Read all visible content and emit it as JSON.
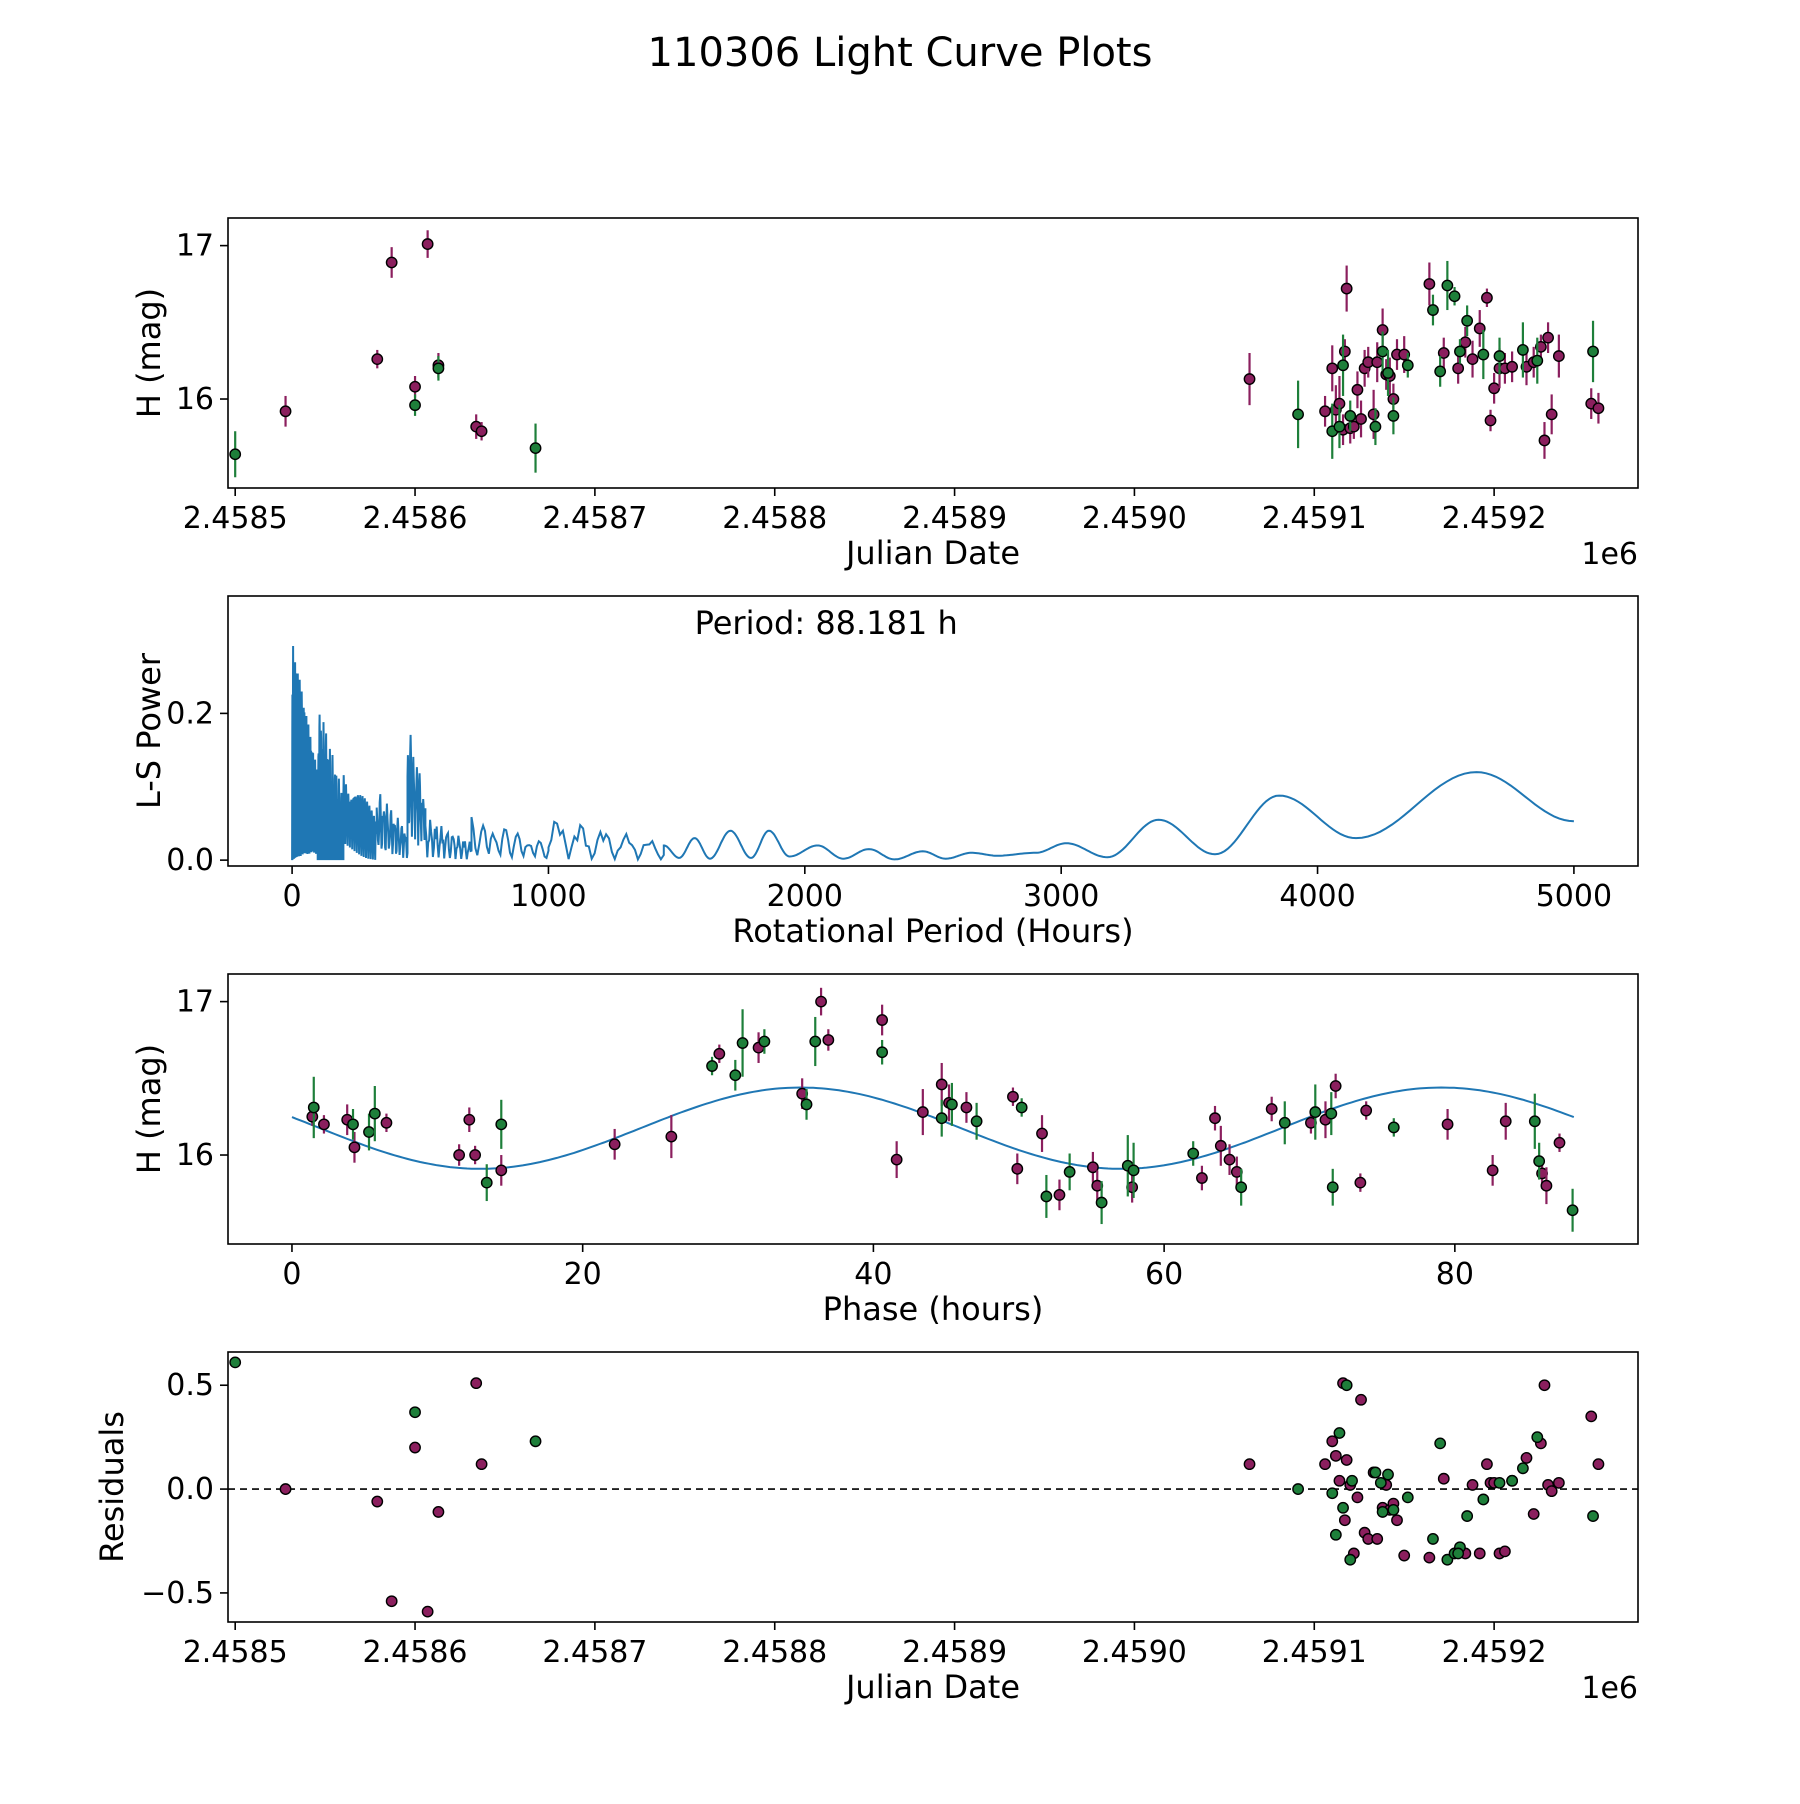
{
  "figure": {
    "title": "110306 Light Curve Plots"
  },
  "colors": {
    "series_a": "#8b1f5e",
    "series_b": "#1e7f3a",
    "curve": "#1f77b4",
    "frame": "#000000"
  },
  "chart_data": [
    {
      "type": "scatter",
      "title": "",
      "xlabel": "Julian Date",
      "ylabel": "H (mag)",
      "x_offset_label": "1e6",
      "xlim": [
        2458496,
        2459280
      ],
      "ylim": [
        15.42,
        17.18
      ],
      "xticks": [
        2458500,
        2458600,
        2458700,
        2458800,
        2458900,
        2459000,
        2459100,
        2459200
      ],
      "xtick_labels": [
        "2.4585",
        "2.4586",
        "2.4587",
        "2.4588",
        "2.4589",
        "2.4590",
        "2.4591",
        "2.4592"
      ],
      "yticks": [
        16,
        17
      ],
      "ytick_labels": [
        "16",
        "17"
      ],
      "series": [
        {
          "name": "series-a",
          "color": "#8b1f5e",
          "x": [
            2458528,
            2458579,
            2458587,
            2458600,
            2458607,
            2458613,
            2458634,
            2458637,
            2459064,
            2459106,
            2459110,
            2459112,
            2459114,
            2459116,
            2459117,
            2459118,
            2459120,
            2459122,
            2459124,
            2459126,
            2459128,
            2459130,
            2459133,
            2459135,
            2459138,
            2459140,
            2459142,
            2459144,
            2459146,
            2459150,
            2459164,
            2459172,
            2459180,
            2459184,
            2459188,
            2459192,
            2459196,
            2459198,
            2459200,
            2459203,
            2459206,
            2459210,
            2459218,
            2459222,
            2459226,
            2459228,
            2459230,
            2459232,
            2459236,
            2459254,
            2459258
          ],
          "y": [
            15.92,
            16.26,
            16.89,
            16.08,
            17.01,
            16.22,
            15.82,
            15.79,
            16.13,
            15.92,
            16.2,
            15.93,
            15.97,
            15.8,
            16.31,
            16.72,
            15.81,
            15.82,
            16.06,
            15.87,
            16.2,
            16.24,
            15.9,
            16.24,
            16.45,
            16.16,
            16.15,
            16.0,
            16.29,
            16.29,
            16.75,
            16.3,
            16.2,
            16.37,
            16.26,
            16.46,
            16.66,
            15.86,
            16.07,
            16.2,
            16.2,
            16.21,
            16.21,
            16.24,
            16.34,
            15.73,
            16.4,
            15.9,
            16.28,
            15.97,
            15.94
          ],
          "yerr": [
            0.1,
            0.06,
            0.1,
            0.07,
            0.09,
            0.08,
            0.08,
            0.06,
            0.17,
            0.1,
            0.15,
            0.16,
            0.18,
            0.1,
            0.08,
            0.15,
            0.1,
            0.08,
            0.12,
            0.12,
            0.12,
            0.1,
            0.16,
            0.13,
            0.14,
            0.1,
            0.12,
            0.1,
            0.1,
            0.12,
            0.14,
            0.1,
            0.1,
            0.1,
            0.12,
            0.12,
            0.06,
            0.07,
            0.1,
            0.13,
            0.1,
            0.1,
            0.12,
            0.1,
            0.08,
            0.12,
            0.1,
            0.13,
            0.14,
            0.1,
            0.1
          ]
        },
        {
          "name": "series-b",
          "color": "#1e7f3a",
          "x": [
            2458500,
            2458600,
            2458613,
            2458667,
            2459091,
            2459110,
            2459114,
            2459116,
            2459120,
            2459134,
            2459138,
            2459141,
            2459144,
            2459152,
            2459166,
            2459170,
            2459174,
            2459178,
            2459181,
            2459185,
            2459194,
            2459203,
            2459216,
            2459224,
            2459255
          ],
          "y": [
            15.64,
            15.96,
            16.2,
            15.68,
            15.9,
            15.79,
            15.82,
            16.22,
            15.89,
            15.82,
            16.31,
            16.17,
            15.89,
            16.22,
            16.58,
            16.18,
            16.74,
            16.67,
            16.31,
            16.51,
            16.29,
            16.28,
            16.32,
            16.25,
            16.31
          ],
          "yerr": [
            0.15,
            0.07,
            0.08,
            0.16,
            0.22,
            0.18,
            0.14,
            0.2,
            0.1,
            0.12,
            0.13,
            0.15,
            0.12,
            0.08,
            0.1,
            0.1,
            0.16,
            0.06,
            0.08,
            0.1,
            0.16,
            0.12,
            0.18,
            0.15,
            0.2
          ]
        }
      ]
    },
    {
      "type": "line",
      "title": "",
      "xlabel": "Rotational Period (Hours)",
      "ylabel": "L-S Power",
      "annotation": "Period: 88.181 h",
      "xlim": [
        -250,
        5250
      ],
      "ylim": [
        -0.008,
        0.36
      ],
      "xticks": [
        0,
        1000,
        2000,
        3000,
        4000,
        5000
      ],
      "xtick_labels": [
        "0",
        "1000",
        "2000",
        "3000",
        "4000",
        "5000"
      ],
      "yticks": [
        0.0,
        0.2
      ],
      "ytick_labels": [
        "0.0",
        "0.2"
      ],
      "segments": [
        {
          "x_start": 0,
          "x_end": 100,
          "base": 0.0,
          "amp": 0.3,
          "period": 2.6
        },
        {
          "x_start": 100,
          "x_end": 200,
          "base": 0.0,
          "amp": 0.22,
          "period": 5
        },
        {
          "x_start": 200,
          "x_end": 330,
          "base": 0.0,
          "amp": 0.14,
          "period": 9
        },
        {
          "x_start": 330,
          "x_end": 450,
          "base": 0.0,
          "amp": 0.1,
          "period": 14
        },
        {
          "x_start": 450,
          "x_end": 520,
          "base": 0.02,
          "amp": 0.17,
          "period": 12
        },
        {
          "x_start": 520,
          "x_end": 700,
          "base": 0.0,
          "amp": 0.06,
          "period": 22
        },
        {
          "x_start": 700,
          "x_end": 1000,
          "base": 0.0,
          "amp": 0.06,
          "period": 45
        },
        {
          "x_start": 1000,
          "x_end": 1450,
          "base": 0.0,
          "amp": 0.06,
          "period": 90
        }
      ],
      "smooth_points": [
        [
          1450,
          0.02
        ],
        [
          1510,
          0.003
        ],
        [
          1570,
          0.03
        ],
        [
          1630,
          0.002
        ],
        [
          1710,
          0.04
        ],
        [
          1790,
          0.003
        ],
        [
          1860,
          0.04
        ],
        [
          1940,
          0.005
        ],
        [
          2050,
          0.02
        ],
        [
          2150,
          0.002
        ],
        [
          2250,
          0.015
        ],
        [
          2350,
          0.001
        ],
        [
          2460,
          0.012
        ],
        [
          2550,
          0.002
        ],
        [
          2650,
          0.01
        ],
        [
          2750,
          0.006
        ],
        [
          2900,
          0.01
        ],
        [
          3020,
          0.023
        ],
        [
          3180,
          0.004
        ],
        [
          3380,
          0.055
        ],
        [
          3600,
          0.008
        ],
        [
          3850,
          0.088
        ],
        [
          4150,
          0.03
        ],
        [
          4620,
          0.12
        ],
        [
          5000,
          0.053
        ]
      ]
    },
    {
      "type": "scatter",
      "title": "",
      "xlabel": "Phase (hours)",
      "ylabel": "H (mag)",
      "xlim": [
        -4.4,
        92.6
      ],
      "ylim": [
        15.42,
        17.18
      ],
      "xticks": [
        0,
        20,
        40,
        60,
        80
      ],
      "xtick_labels": [
        "0",
        "20",
        "40",
        "60",
        "80"
      ],
      "yticks": [
        16,
        17
      ],
      "ytick_labels": [
        "16",
        "17"
      ],
      "fit": {
        "mean": 16.175,
        "amplitude": 0.265,
        "period": 44.09,
        "phase_max": 35.0,
        "x_range": [
          0,
          88.18
        ]
      },
      "series": [
        {
          "name": "series-a",
          "color": "#8b1f5e",
          "x": [
            1.4,
            2.2,
            3.8,
            4.3,
            6.5,
            11.5,
            12.2,
            12.6,
            14.4,
            22.2,
            26.1,
            29.4,
            32.1,
            35.1,
            36.4,
            36.9,
            40.6,
            41.6,
            43.4,
            44.7,
            45.2,
            46.4,
            49.6,
            49.9,
            51.6,
            52.8,
            55.1,
            55.4,
            57.8,
            62.6,
            63.5,
            63.9,
            64.5,
            65.0,
            67.4,
            70.1,
            71.1,
            71.8,
            73.5,
            73.9,
            79.5,
            82.6,
            83.5,
            86.0,
            86.3,
            87.2
          ],
          "y": [
            16.25,
            16.2,
            16.23,
            16.05,
            16.21,
            16.0,
            16.23,
            16.0,
            15.9,
            16.07,
            16.12,
            16.66,
            16.7,
            16.4,
            17.0,
            16.75,
            16.88,
            15.97,
            16.28,
            16.46,
            16.34,
            16.31,
            16.38,
            15.91,
            16.14,
            15.74,
            15.92,
            15.8,
            15.79,
            15.85,
            16.24,
            16.06,
            15.97,
            15.89,
            16.3,
            16.21,
            16.23,
            16.45,
            15.82,
            16.29,
            16.2,
            15.9,
            16.22,
            15.88,
            15.8,
            16.08
          ],
          "yerr": [
            0.06,
            0.06,
            0.1,
            0.1,
            0.06,
            0.07,
            0.08,
            0.06,
            0.1,
            0.1,
            0.14,
            0.06,
            0.1,
            0.1,
            0.09,
            0.07,
            0.1,
            0.12,
            0.15,
            0.14,
            0.12,
            0.1,
            0.06,
            0.1,
            0.12,
            0.1,
            0.1,
            0.1,
            0.1,
            0.08,
            0.08,
            0.13,
            0.1,
            0.1,
            0.08,
            0.07,
            0.12,
            0.08,
            0.06,
            0.06,
            0.1,
            0.1,
            0.12,
            0.1,
            0.12,
            0.06
          ]
        },
        {
          "name": "series-b",
          "color": "#1e7f3a",
          "x": [
            1.5,
            4.2,
            5.3,
            5.7,
            13.4,
            14.4,
            28.9,
            30.5,
            31.0,
            32.5,
            35.4,
            36.0,
            40.6,
            44.7,
            45.4,
            47.1,
            50.2,
            51.9,
            53.5,
            55.7,
            57.5,
            57.9,
            62.0,
            65.3,
            68.3,
            70.4,
            71.5,
            71.6,
            75.8,
            85.5,
            85.8,
            88.1
          ],
          "y": [
            16.31,
            16.2,
            16.15,
            16.27,
            15.82,
            16.2,
            16.58,
            16.52,
            16.73,
            16.74,
            16.33,
            16.74,
            16.67,
            16.24,
            16.33,
            16.22,
            16.31,
            15.73,
            15.89,
            15.69,
            15.93,
            15.9,
            16.01,
            15.79,
            16.21,
            16.28,
            16.27,
            15.79,
            16.18,
            16.22,
            15.96,
            15.64
          ],
          "yerr": [
            0.2,
            0.1,
            0.12,
            0.18,
            0.12,
            0.16,
            0.06,
            0.1,
            0.22,
            0.08,
            0.1,
            0.16,
            0.08,
            0.12,
            0.14,
            0.12,
            0.06,
            0.14,
            0.12,
            0.14,
            0.2,
            0.18,
            0.08,
            0.12,
            0.14,
            0.18,
            0.14,
            0.12,
            0.06,
            0.18,
            0.12,
            0.14
          ]
        }
      ]
    },
    {
      "type": "scatter",
      "title": "",
      "xlabel": "Julian Date",
      "ylabel": "Residuals",
      "x_offset_label": "1e6",
      "xlim": [
        2458496,
        2459280
      ],
      "ylim": [
        -0.64,
        0.66
      ],
      "xticks": [
        2458500,
        2458600,
        2458700,
        2458800,
        2458900,
        2459000,
        2459100,
        2459200
      ],
      "xtick_labels": [
        "2.4585",
        "2.4586",
        "2.4587",
        "2.4588",
        "2.4589",
        "2.4590",
        "2.4591",
        "2.4592"
      ],
      "yticks": [
        -0.5,
        0.0,
        0.5
      ],
      "ytick_labels": [
        "−0.5",
        "0.0",
        "0.5"
      ],
      "hline": 0.0,
      "series": [
        {
          "name": "series-a",
          "color": "#8b1f5e",
          "x": [
            2458528,
            2458579,
            2458587,
            2458600,
            2458607,
            2458613,
            2458634,
            2458637,
            2459064,
            2459106,
            2459110,
            2459112,
            2459114,
            2459116,
            2459117,
            2459118,
            2459120,
            2459122,
            2459124,
            2459126,
            2459128,
            2459130,
            2459133,
            2459135,
            2459138,
            2459140,
            2459142,
            2459144,
            2459146,
            2459150,
            2459164,
            2459172,
            2459180,
            2459184,
            2459188,
            2459192,
            2459196,
            2459198,
            2459200,
            2459203,
            2459206,
            2459210,
            2459218,
            2459222,
            2459226,
            2459228,
            2459230,
            2459232,
            2459236,
            2459254,
            2459258
          ],
          "y": [
            0.0,
            -0.06,
            -0.54,
            0.2,
            -0.59,
            -0.11,
            0.51,
            0.12,
            0.12,
            0.12,
            0.23,
            0.16,
            0.04,
            0.51,
            -0.15,
            0.14,
            0.02,
            -0.31,
            -0.04,
            0.43,
            -0.21,
            -0.24,
            0.08,
            -0.24,
            -0.09,
            0.02,
            -0.1,
            -0.07,
            -0.15,
            -0.32,
            -0.33,
            0.05,
            -0.3,
            -0.31,
            0.02,
            -0.31,
            0.12,
            0.03,
            0.03,
            -0.31,
            -0.3,
            0.04,
            0.15,
            -0.12,
            0.22,
            0.5,
            0.02,
            -0.01,
            0.03,
            0.35,
            0.12
          ]
        },
        {
          "name": "series-b",
          "color": "#1e7f3a",
          "x": [
            2458500,
            2458600,
            2458667,
            2459091,
            2459110,
            2459114,
            2459116,
            2459118,
            2459120,
            2459134,
            2459138,
            2459141,
            2459144,
            2459152,
            2459166,
            2459170,
            2459174,
            2459178,
            2459181,
            2459185,
            2459194,
            2459203,
            2459216,
            2459224,
            2459255,
            2459121,
            2459137,
            2459180,
            2459210,
            2459112
          ],
          "y": [
            0.61,
            0.37,
            0.23,
            0.0,
            -0.02,
            0.27,
            -0.09,
            0.5,
            -0.34,
            0.08,
            -0.11,
            0.07,
            -0.1,
            -0.04,
            -0.24,
            0.22,
            -0.34,
            -0.31,
            -0.28,
            -0.13,
            -0.05,
            0.03,
            0.1,
            0.25,
            -0.13,
            0.04,
            0.03,
            -0.31,
            0.04,
            -0.22
          ]
        }
      ]
    }
  ]
}
